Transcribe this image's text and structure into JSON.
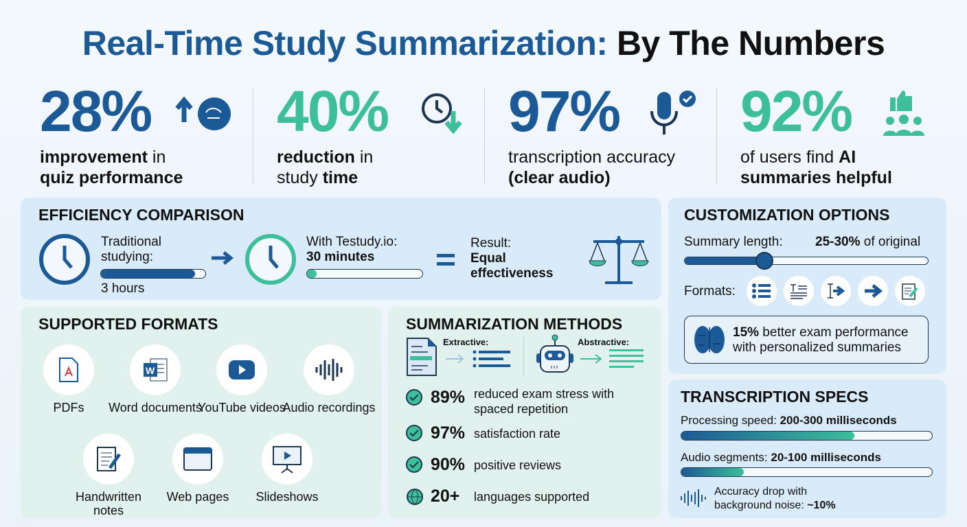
{
  "title": {
    "part1": "Real-Time Study Summarization:",
    "part2": "By The Numbers"
  },
  "stats": [
    {
      "value": "28%",
      "line1_bold": "improvement",
      "line1": " in",
      "line2_bold": "quiz performance",
      "icon": "arrow-up-brain-icon"
    },
    {
      "value": "40%",
      "line1_bold": "reduction",
      "line1": " in",
      "line2_pre": "study ",
      "line2_bold": "time",
      "icon": "clock-down-arrow-icon"
    },
    {
      "value": "97%",
      "line1": "transcription accuracy",
      "line2_bold": "(clear audio)",
      "icon": "microphone-check-icon"
    },
    {
      "value": "92%",
      "line1": "of users find ",
      "line1_bold": "AI",
      "line2_bold": "summaries helpful",
      "icon": "thumbs-up-users-icon"
    }
  ],
  "efficiency": {
    "heading": "EFFICIENCY COMPARISON",
    "traditional_label": "Traditional studying:",
    "traditional_value": "3 hours",
    "traditional_fill": 0.9,
    "testudy_label": "With Testudy.io:",
    "testudy_value": "30 minutes",
    "testudy_fill": 0.08,
    "result_label": "Result:",
    "result_value": "Equal effectiveness"
  },
  "customization": {
    "heading": "CUSTOMIZATION OPTIONS",
    "length_label": "Summary length:",
    "length_value": "25-30%",
    "length_suffix": " of original",
    "slider_fraction": 0.33,
    "formats_label": "Formats:",
    "format_icons": [
      "bullet-list-icon",
      "text-paragraph-icon",
      "text-cursor-arrow-icon",
      "arrow-right-icon",
      "notes-edit-icon"
    ],
    "callout_bold": "15%",
    "callout_text": " better exam performance with personalized summaries"
  },
  "formats": {
    "heading": "SUPPORTED FORMATS",
    "items": [
      {
        "label": "PDFs",
        "icon": "pdf-icon"
      },
      {
        "label": "Word documents",
        "icon": "word-icon"
      },
      {
        "label": "YouTube videos",
        "icon": "youtube-icon"
      },
      {
        "label": "Audio recordings",
        "icon": "audio-wave-icon"
      },
      {
        "label": "Handwritten notes",
        "icon": "notepad-pen-icon"
      },
      {
        "label": "Web pages",
        "icon": "browser-icon"
      },
      {
        "label": "Slideshows",
        "icon": "presentation-icon"
      }
    ]
  },
  "methods": {
    "heading": "SUMMARIZATION METHODS",
    "extractive": "Extractive:",
    "abstractive": "Abstractive:",
    "stats": [
      {
        "value": "89%",
        "text": "reduced exam stress with spaced repetition",
        "icon": "check-icon"
      },
      {
        "value": "97%",
        "text": "satisfaction rate",
        "icon": "check-icon"
      },
      {
        "value": "90%",
        "text": "positive reviews",
        "icon": "check-icon"
      },
      {
        "value": "20+",
        "text": "languages supported",
        "icon": "globe-icon"
      }
    ]
  },
  "transcription": {
    "heading": "TRANSCRIPTION SPECS",
    "speed_label": "Processing speed: ",
    "speed_value": "200-300 milliseconds",
    "speed_fill": 0.69,
    "segments_label": "Audio segments: ",
    "segments_value": "20-100 milliseconds",
    "segments_fill": 0.25,
    "noise_text": "Accuracy drop with background noise: ",
    "noise_value": "~10%"
  },
  "colors": {
    "blue": "#1b5a96",
    "teal": "#3dbf9a"
  }
}
